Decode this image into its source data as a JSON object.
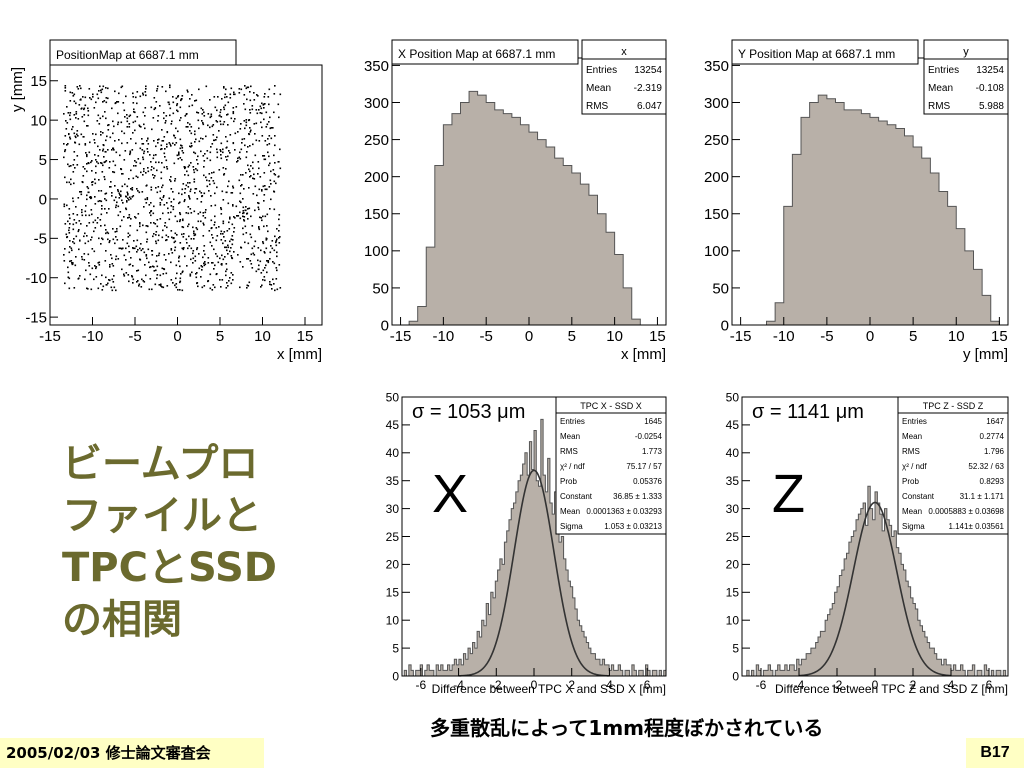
{
  "slide": {
    "title_lines": [
      "ビームプロ",
      "ファイルと",
      "TPCとSSD",
      "の相関"
    ],
    "caption": "多重散乱によって1mm程度ぼかされている",
    "footer_date": "2005/02/03 修士論文審査会",
    "page_number": "B17"
  },
  "colors": {
    "histogram_fill": "#b8b0a8",
    "title_text": "#6b6a2e",
    "footer_bg": "#ffffc4"
  },
  "chart_data": [
    {
      "id": "position-map",
      "type": "scatter",
      "title": "PositionMap at 6687.1 mm",
      "xlabel": "x [mm]",
      "ylabel": "y [mm]",
      "xlim": [
        -15,
        17
      ],
      "ylim": [
        -16,
        17
      ],
      "xticks": [
        -15,
        -10,
        -5,
        0,
        5,
        10,
        15
      ],
      "xtick_labels": [
        "-15",
        "-10",
        "-5",
        "0",
        "5",
        "10",
        "15"
      ],
      "yticks": [
        -15,
        -10,
        -5,
        0,
        5,
        10,
        15
      ],
      "ytick_labels": [
        "-15",
        "-10",
        "-5",
        "0",
        "5",
        "10",
        "15"
      ],
      "distribution": {
        "x_range": [
          -13.5,
          12
        ],
        "y_range": [
          -11.5,
          14.5
        ],
        "approx_points": 1600
      }
    },
    {
      "id": "x-position-map",
      "type": "bar",
      "title": "X Position Map at 6687.1 mm",
      "xlabel": "x [mm]",
      "ylabel": "",
      "xlim": [
        -16,
        16
      ],
      "ylim": [
        0,
        360
      ],
      "xticks": [
        -15,
        -10,
        -5,
        0,
        5,
        10,
        15
      ],
      "xtick_labels": [
        "-15",
        "-10",
        "-5",
        "0",
        "5",
        "10",
        "15"
      ],
      "yticks": [
        0,
        50,
        100,
        150,
        200,
        250,
        300,
        350
      ],
      "ytick_labels": [
        "0",
        "50",
        "100",
        "150",
        "200",
        "250",
        "300",
        "350"
      ],
      "bin_edges": [
        -14,
        -13,
        -12,
        -11,
        -10,
        -9,
        -8,
        -7,
        -6,
        -5,
        -4,
        -3,
        -2,
        -1,
        0,
        1,
        2,
        3,
        4,
        5,
        6,
        7,
        8,
        9,
        10,
        11,
        12,
        13
      ],
      "values": [
        5,
        25,
        105,
        215,
        270,
        285,
        300,
        315,
        310,
        300,
        290,
        285,
        280,
        270,
        260,
        250,
        240,
        225,
        215,
        205,
        190,
        175,
        150,
        125,
        95,
        50,
        8
      ],
      "stats": {
        "header": "x",
        "rows": [
          [
            "Entries",
            "13254"
          ],
          [
            "Mean",
            "-2.319"
          ],
          [
            "RMS",
            "6.047"
          ]
        ]
      }
    },
    {
      "id": "y-position-map",
      "type": "bar",
      "title": "Y Position Map at 6687.1 mm",
      "xlabel": "y [mm]",
      "ylabel": "",
      "xlim": [
        -16,
        16
      ],
      "ylim": [
        0,
        360
      ],
      "xticks": [
        -15,
        -10,
        -5,
        0,
        5,
        10,
        15
      ],
      "xtick_labels": [
        "-15",
        "-10",
        "-5",
        "0",
        "5",
        "10",
        "15"
      ],
      "yticks": [
        0,
        50,
        100,
        150,
        200,
        250,
        300,
        350
      ],
      "ytick_labels": [
        "0",
        "50",
        "100",
        "150",
        "200",
        "250",
        "300",
        "350"
      ],
      "bin_edges": [
        -12,
        -11,
        -10,
        -9,
        -8,
        -7,
        -6,
        -5,
        -4,
        -3,
        -2,
        -1,
        0,
        1,
        2,
        3,
        4,
        5,
        6,
        7,
        8,
        9,
        10,
        11,
        12,
        13,
        14,
        15
      ],
      "values": [
        5,
        30,
        160,
        230,
        280,
        300,
        310,
        305,
        300,
        290,
        290,
        285,
        280,
        275,
        270,
        265,
        255,
        240,
        225,
        205,
        180,
        160,
        130,
        100,
        75,
        40,
        5
      ],
      "stats": {
        "header": "y",
        "rows": [
          [
            "Entries",
            "13254"
          ],
          [
            "Mean",
            "-0.108"
          ],
          [
            "RMS",
            "5.988"
          ]
        ]
      }
    },
    {
      "id": "tpc-x-ssd-x",
      "type": "bar",
      "big_label": "X",
      "sigma_label": "σ = 1053 μm",
      "xlabel": "Difference between TPC X and SSD X [mm]",
      "ylabel": "",
      "xlim": [
        -7,
        7
      ],
      "ylim": [
        0,
        50
      ],
      "xticks": [
        -6,
        -4,
        -2,
        0,
        2,
        4,
        6
      ],
      "xtick_labels": [
        "-6",
        "-4",
        "-2",
        "0",
        "2",
        "4",
        "6"
      ],
      "yticks": [
        0,
        5,
        10,
        15,
        20,
        25,
        30,
        35,
        40,
        45,
        50
      ],
      "ytick_labels": [
        "0",
        "5",
        "10",
        "15",
        "20",
        "25",
        "30",
        "35",
        "40",
        "45",
        "50"
      ],
      "bin_edges_range": [
        -7,
        7
      ],
      "values": [
        0,
        1,
        0,
        2,
        1,
        0,
        1,
        1,
        2,
        0,
        1,
        2,
        1,
        1,
        0,
        2,
        1,
        2,
        1,
        1,
        2,
        1,
        2,
        3,
        2,
        3,
        2,
        4,
        3,
        5,
        4,
        6,
        5,
        8,
        7,
        10,
        9,
        13,
        11,
        15,
        14,
        17,
        19,
        21,
        20,
        24,
        26,
        28,
        30,
        31,
        33,
        35,
        36,
        38,
        40,
        36,
        42,
        37,
        44,
        35,
        34,
        46,
        36,
        33,
        39,
        31,
        29,
        33,
        27,
        24,
        25,
        21,
        19,
        17,
        16,
        14,
        12,
        10,
        9,
        8,
        7,
        6,
        5,
        4,
        4,
        3,
        3,
        2,
        3,
        2,
        2,
        1,
        2,
        1,
        1,
        2,
        1,
        0,
        1,
        1,
        0,
        2,
        1,
        0,
        1,
        1,
        0,
        2,
        1,
        0,
        1,
        1,
        0,
        1,
        0,
        1
      ],
      "fit": {
        "constant": 36.85,
        "mean": 0.0001363,
        "sigma": 1.053
      },
      "stats": {
        "header": "TPC X - SSD X",
        "rows": [
          [
            "Entries",
            "1645"
          ],
          [
            "Mean",
            "-0.0254"
          ],
          [
            "RMS",
            "1.773"
          ],
          [
            "χ² / ndf",
            "75.17 / 57"
          ],
          [
            "Prob",
            "0.05376"
          ],
          [
            "Constant",
            "36.85 ± 1.333"
          ],
          [
            "Mean",
            "0.0001363 ± 0.03293"
          ],
          [
            "Sigma",
            "1.053 ± 0.03213"
          ]
        ]
      }
    },
    {
      "id": "tpc-z-ssd-z",
      "type": "bar",
      "big_label": "Z",
      "sigma_label": "σ = 1141 μm",
      "xlabel": "Difference between TPC Z and SSD Z [mm]",
      "ylabel": "",
      "xlim": [
        -7,
        7
      ],
      "ylim": [
        0,
        50
      ],
      "xticks": [
        -6,
        -4,
        -2,
        0,
        2,
        4,
        6
      ],
      "xtick_labels": [
        "-6",
        "-4",
        "-2",
        "0",
        "2",
        "4",
        "6"
      ],
      "yticks": [
        0,
        5,
        10,
        15,
        20,
        25,
        30,
        35,
        40,
        45,
        50
      ],
      "ytick_labels": [
        "0",
        "5",
        "10",
        "15",
        "20",
        "25",
        "30",
        "35",
        "40",
        "45",
        "50"
      ],
      "bin_edges_range": [
        -7,
        7
      ],
      "values": [
        0,
        0,
        1,
        0,
        1,
        0,
        2,
        1,
        0,
        1,
        1,
        2,
        1,
        0,
        1,
        2,
        1,
        1,
        2,
        1,
        2,
        2,
        1,
        3,
        2,
        3,
        3,
        4,
        4,
        5,
        5,
        6,
        7,
        8,
        8,
        10,
        11,
        12,
        13,
        15,
        16,
        18,
        19,
        21,
        22,
        24,
        25,
        26,
        28,
        29,
        30,
        31,
        27,
        34,
        30,
        28,
        33,
        31,
        29,
        26,
        30,
        28,
        27,
        25,
        26,
        23,
        22,
        20,
        19,
        17,
        16,
        14,
        13,
        12,
        10,
        9,
        8,
        7,
        6,
        5,
        5,
        4,
        3,
        3,
        2,
        3,
        2,
        2,
        1,
        2,
        1,
        1,
        2,
        1,
        0,
        1,
        1,
        2,
        0,
        1,
        1,
        0,
        2,
        1,
        0,
        1,
        0,
        1,
        1,
        0,
        1,
        0
      ],
      "fit": {
        "constant": 31.1,
        "mean": 0.0005883,
        "sigma": 1.141
      },
      "stats": {
        "header": "TPC Z - SSD Z",
        "rows": [
          [
            "Entries",
            "1647"
          ],
          [
            "Mean",
            "0.2774"
          ],
          [
            "RMS",
            "1.796"
          ],
          [
            "χ² / ndf",
            "52.32 / 63"
          ],
          [
            "Prob",
            "0.8293"
          ],
          [
            "Constant",
            "31.1 ± 1.171"
          ],
          [
            "Mean",
            "0.0005883 ± 0.03698"
          ],
          [
            "Sigma",
            "1.141± 0.03561"
          ]
        ]
      }
    }
  ]
}
